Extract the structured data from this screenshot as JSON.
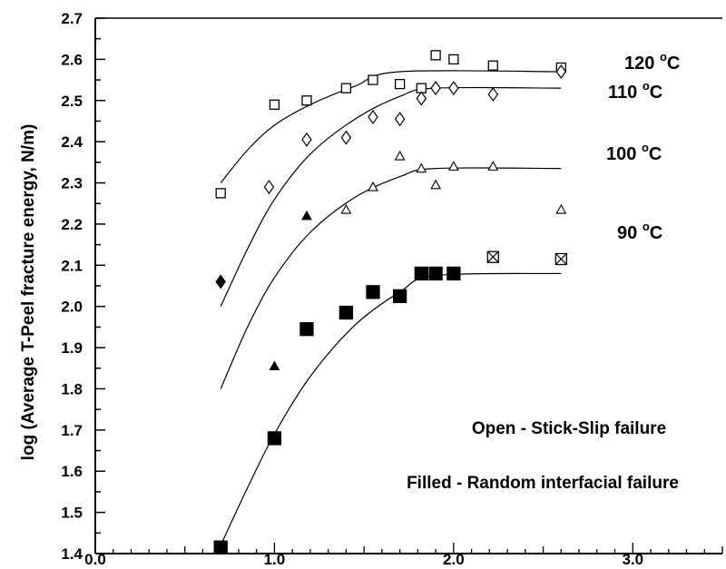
{
  "chart_data": {
    "type": "scatter",
    "ylabel": "log (Average T-Peel fracture energy, N/m)",
    "xlim": [
      0.0,
      3.5
    ],
    "ylim": [
      1.4,
      2.7
    ],
    "x_ticks": [
      "0.0",
      "1.0",
      "2.0",
      "3.0"
    ],
    "y_ticks": [
      "1.4",
      "1.5",
      "1.6",
      "1.7",
      "1.8",
      "1.9",
      "2.0",
      "2.1",
      "2.2",
      "2.3",
      "2.4",
      "2.5",
      "2.6",
      "2.7"
    ],
    "grid": false,
    "annotations": [
      "Open - Stick-Slip failure",
      "Filled - Random interfacial failure"
    ],
    "series": [
      {
        "name": "120 °C",
        "label_main": "120",
        "label_unit": "C",
        "marker": "square-open",
        "points": [
          [
            0.7,
            2.275
          ],
          [
            1.0,
            2.49
          ],
          [
            1.18,
            2.5
          ],
          [
            1.4,
            2.53
          ],
          [
            1.55,
            2.55
          ],
          [
            1.7,
            2.54
          ],
          [
            1.82,
            2.53
          ],
          [
            1.9,
            2.61
          ],
          [
            2.0,
            2.6
          ],
          [
            2.22,
            2.585
          ],
          [
            2.6,
            2.58
          ]
        ],
        "fit": [
          [
            0.7,
            2.3
          ],
          [
            0.85,
            2.38
          ],
          [
            1.0,
            2.44
          ],
          [
            1.2,
            2.49
          ],
          [
            1.45,
            2.535
          ],
          [
            1.7,
            2.57
          ],
          [
            2.6,
            2.57
          ]
        ]
      },
      {
        "name": "110 °C",
        "label_main": "110",
        "label_unit": "C",
        "marker": "diamond-open",
        "points": [
          [
            0.7,
            2.06,
            "filled"
          ],
          [
            0.97,
            2.29
          ],
          [
            1.18,
            2.405
          ],
          [
            1.4,
            2.41
          ],
          [
            1.55,
            2.46
          ],
          [
            1.7,
            2.455
          ],
          [
            1.82,
            2.505
          ],
          [
            1.9,
            2.53
          ],
          [
            2.0,
            2.53
          ],
          [
            2.22,
            2.515
          ],
          [
            2.6,
            2.57
          ]
        ],
        "fit": [
          [
            0.7,
            2.0
          ],
          [
            0.85,
            2.14
          ],
          [
            1.0,
            2.26
          ],
          [
            1.2,
            2.37
          ],
          [
            1.45,
            2.455
          ],
          [
            1.7,
            2.51
          ],
          [
            1.9,
            2.53
          ],
          [
            2.6,
            2.53
          ]
        ]
      },
      {
        "name": "100 °C",
        "label_main": "100",
        "label_unit": "C",
        "marker": "triangle-open",
        "points": [
          [
            1.0,
            1.855,
            "filled"
          ],
          [
            1.18,
            2.22,
            "filled"
          ],
          [
            1.4,
            2.235
          ],
          [
            1.55,
            2.29
          ],
          [
            1.7,
            2.365
          ],
          [
            1.82,
            2.335
          ],
          [
            1.9,
            2.295
          ],
          [
            2.0,
            2.34
          ],
          [
            2.22,
            2.34
          ],
          [
            2.6,
            2.235
          ]
        ],
        "fit": [
          [
            0.7,
            1.8
          ],
          [
            0.85,
            1.95
          ],
          [
            1.0,
            2.07
          ],
          [
            1.2,
            2.18
          ],
          [
            1.45,
            2.265
          ],
          [
            1.7,
            2.315
          ],
          [
            1.9,
            2.335
          ],
          [
            2.6,
            2.335
          ]
        ]
      },
      {
        "name": "90 °C",
        "label_main": "90",
        "label_unit": "C",
        "marker": "square-filled",
        "points": [
          [
            0.7,
            1.415
          ],
          [
            1.0,
            1.68
          ],
          [
            1.18,
            1.945
          ],
          [
            1.4,
            1.985
          ],
          [
            1.55,
            2.035
          ],
          [
            1.7,
            2.025
          ],
          [
            1.82,
            2.08
          ],
          [
            1.9,
            2.08
          ],
          [
            2.0,
            2.08
          ],
          [
            2.22,
            2.12,
            "crossed"
          ],
          [
            2.6,
            2.115,
            "crossed"
          ]
        ],
        "fit": [
          [
            0.7,
            1.42
          ],
          [
            0.85,
            1.56
          ],
          [
            1.0,
            1.69
          ],
          [
            1.2,
            1.83
          ],
          [
            1.45,
            1.955
          ],
          [
            1.7,
            2.035
          ],
          [
            1.9,
            2.075
          ],
          [
            2.6,
            2.08
          ]
        ]
      }
    ],
    "legend_placement": "right, beside curves"
  }
}
